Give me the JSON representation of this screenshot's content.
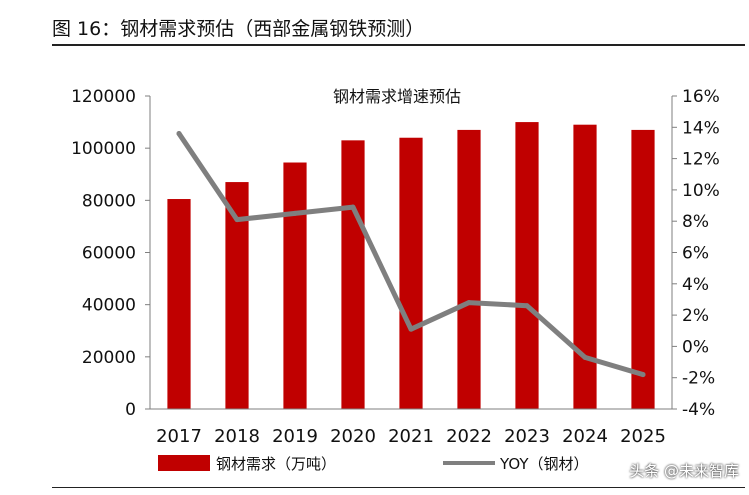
{
  "figure": {
    "title": "图 16：钢材需求预估（西部金属钢铁预测）",
    "watermark": "头条 @未来智库"
  },
  "colors": {
    "bar": "#C00000",
    "line": "#7F7F7F",
    "axis": "#7F7F7F",
    "text": "#111111"
  },
  "chart_data": {
    "type": "bar",
    "title": "钢材需求增速预估",
    "categories": [
      "2017",
      "2018",
      "2019",
      "2020",
      "2021",
      "2022",
      "2023",
      "2024",
      "2025"
    ],
    "series": [
      {
        "name": "钢材需求（万吨）",
        "type": "bar",
        "axis": "left",
        "values": [
          80500,
          87000,
          94500,
          103000,
          104000,
          107000,
          110000,
          109000,
          107000
        ]
      },
      {
        "name": "YOY（钢材）",
        "type": "line",
        "axis": "right",
        "values": [
          13.6,
          8.1,
          8.5,
          8.9,
          1.1,
          2.8,
          2.6,
          -0.7,
          -1.8
        ]
      }
    ],
    "y_left": {
      "min": 0,
      "max": 120000,
      "ticks": [
        "0",
        "20000",
        "40000",
        "60000",
        "80000",
        "100000",
        "120000"
      ]
    },
    "y_right": {
      "min": -4,
      "max": 16,
      "ticks": [
        "-4%",
        "-2%",
        "0%",
        "2%",
        "4%",
        "6%",
        "8%",
        "10%",
        "12%",
        "14%",
        "16%"
      ]
    },
    "grid": false,
    "legend": "bottom"
  }
}
